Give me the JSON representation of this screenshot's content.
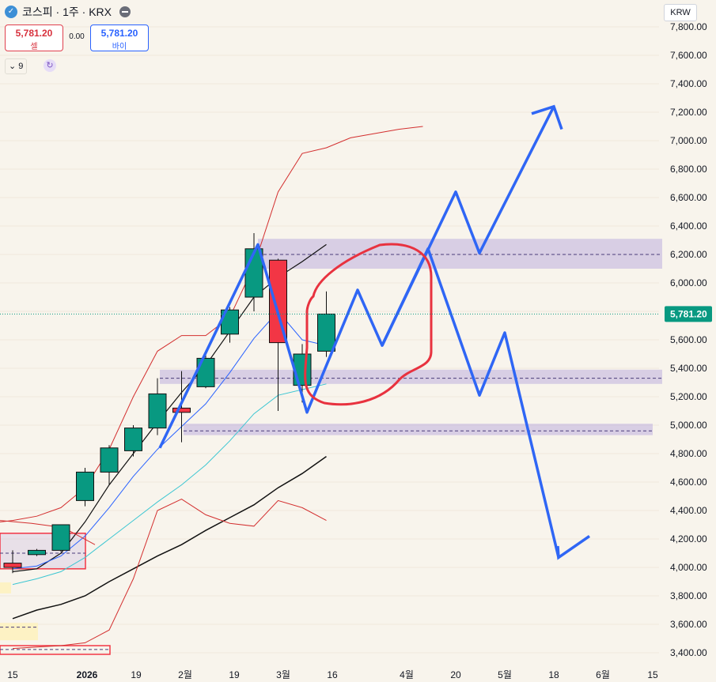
{
  "header": {
    "symbol": "코스피 · 1주 · KRX",
    "logo_icon": "kospi-logo-icon",
    "visibility_icon": "eye-hide-icon"
  },
  "quote": {
    "sell_price": "5,781.20",
    "sell_label": "셀",
    "spread": "0.00",
    "buy_price": "5,781.20",
    "buy_label": "바이"
  },
  "indicator": {
    "collapse_icon": "chevron-down-icon",
    "count": "9",
    "refresh_icon": "refresh-icon"
  },
  "currency": "KRW",
  "colors": {
    "up": "#089981",
    "down": "#f23645",
    "drawing": "#2f66f5",
    "zone": "#9f87d6",
    "bollinger": "#d32f2f",
    "last_price": "#089981"
  },
  "chart_data": {
    "type": "candlestick",
    "price_axis": {
      "ticks": [
        3400,
        3600,
        3800,
        4000,
        4200,
        4400,
        4600,
        4800,
        5000,
        5200,
        5400,
        5600,
        5800,
        6000,
        6200,
        6400,
        6600,
        6800,
        7000,
        7200,
        7400,
        7600,
        7800
      ],
      "tick_labels": [
        "3,400.00",
        "3,600.00",
        "3,800.00",
        "4,000.00",
        "4,200.00",
        "4,400.00",
        "4,600.00",
        "4,800.00",
        "5,000.00",
        "5,200.00",
        "5,400.00",
        "5,600.00",
        "5,800.00",
        "6,000.00",
        "6,200.00",
        "6,400.00",
        "6,600.00",
        "6,800.00",
        "7,000.00",
        "7,200.00",
        "7,400.00",
        "7,600.00",
        "7,800.00"
      ],
      "range": [
        3390,
        7830
      ]
    },
    "last_price": 5781.2,
    "last_price_label": "5,781.20",
    "time_axis": {
      "labels": [
        "15",
        "2026",
        "19",
        "2월",
        "19",
        "3월",
        "16",
        "4월",
        "20",
        "5월",
        "18",
        "6월",
        "15"
      ],
      "bold": [
        "2026"
      ]
    },
    "candles": [
      {
        "open": 4030,
        "high": 4120,
        "low": 3960,
        "close": 4000
      },
      {
        "open": 4090,
        "high": 4130,
        "low": 4080,
        "close": 4120
      },
      {
        "open": 4120,
        "high": 4300,
        "low": 4110,
        "close": 4300
      },
      {
        "open": 4470,
        "high": 4700,
        "low": 4430,
        "close": 4670
      },
      {
        "open": 4670,
        "high": 4860,
        "low": 4580,
        "close": 4840
      },
      {
        "open": 4820,
        "high": 5000,
        "low": 4780,
        "close": 4980
      },
      {
        "open": 4980,
        "high": 5330,
        "low": 4930,
        "close": 5220
      },
      {
        "open": 5120,
        "high": 5380,
        "low": 4880,
        "close": 5090
      },
      {
        "open": 5270,
        "high": 5520,
        "low": 5260,
        "close": 5470
      },
      {
        "open": 5640,
        "high": 5830,
        "low": 5580,
        "close": 5810
      },
      {
        "open": 5900,
        "high": 6350,
        "low": 5800,
        "close": 6240
      },
      {
        "open": 6160,
        "high": 6170,
        "low": 5100,
        "close": 5580
      },
      {
        "open": 5280,
        "high": 5570,
        "low": 5160,
        "close": 5500
      },
      {
        "open": 5520,
        "high": 5940,
        "low": 5480,
        "close": 5781.2
      }
    ],
    "series": [
      {
        "values": [
          3970,
          3990,
          4100,
          4320,
          4580,
          4800,
          5020,
          5230,
          5420,
          5660,
          5900,
          6040,
          6150,
          6270
        ]
      },
      {
        "values": [
          3990,
          4010,
          4080,
          4220,
          4420,
          4640,
          4830,
          4990,
          5150,
          5370,
          5610,
          5800,
          5600,
          5560
        ]
      },
      {
        "values": [
          3880,
          3920,
          3970,
          4070,
          4200,
          4330,
          4460,
          4580,
          4720,
          4890,
          5080,
          5210,
          5250,
          5290
        ]
      },
      {
        "values": [
          3640,
          3700,
          3740,
          3800,
          3900,
          3990,
          4080,
          4160,
          4260,
          4350,
          4440,
          4560,
          4660,
          4780
        ]
      },
      {
        "values": [
          4310,
          4330,
          4360,
          4420,
          4560,
          4830,
          5200,
          5520,
          5630,
          5630,
          5760,
          6120,
          6640,
          6910,
          6950,
          7020,
          7050,
          7080,
          7100
        ]
      },
      {
        "values": [
          3430,
          3440,
          3450,
          3470,
          3560,
          3920,
          4400,
          4480,
          4370,
          4310,
          4290,
          4470,
          4420,
          4330
        ]
      }
    ],
    "zones": [
      {
        "low": 6100,
        "high": 6310,
        "mid": 6200
      },
      {
        "low": 5290,
        "high": 5390,
        "mid": 5330
      },
      {
        "low": 4930,
        "high": 5010,
        "mid": 4960
      }
    ]
  }
}
